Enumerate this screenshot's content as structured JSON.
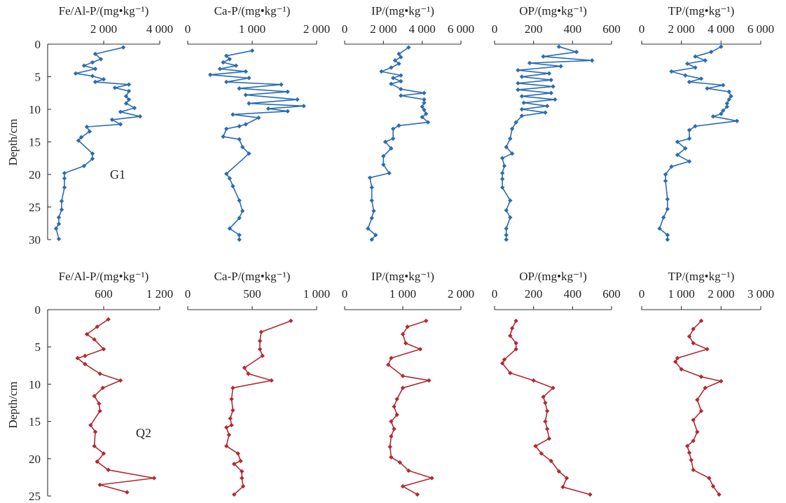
{
  "figure": {
    "ylabel": "Depth/cm",
    "site_labels": [
      "G1",
      "Q2"
    ]
  },
  "chart_data": [
    {
      "type": "line",
      "site": "G1",
      "series_color": "#2b6cb0",
      "title": "Fe/Al-P/(mg•kg⁻¹)",
      "ylabel": "Depth/cm",
      "xlim": [
        0,
        4000
      ],
      "ylim": [
        0,
        30
      ],
      "x_ticks": [
        "2 000",
        "4 000"
      ],
      "x_tick_values": [
        2000,
        4000
      ],
      "y_ticks": [
        "0",
        "5",
        "10",
        "15",
        "20",
        "25",
        "30"
      ],
      "x": [
        2700,
        1700,
        1900,
        1600,
        1300,
        1700,
        1000,
        1600,
        2000,
        1700,
        2900,
        2400,
        2900,
        2800,
        2900,
        2800,
        3100,
        2600,
        3300,
        2300,
        2600,
        1400,
        1500,
        1200,
        1100,
        1600,
        1600,
        1300,
        600,
        600,
        600,
        500,
        500,
        400,
        400,
        300,
        400
      ],
      "y": [
        0.5,
        1.5,
        2.3,
        2.8,
        3.3,
        3.8,
        4.5,
        4.9,
        5.4,
        5.8,
        6.2,
        6.7,
        7.2,
        8.0,
        8.5,
        9.1,
        9.8,
        10.4,
        11.1,
        11.6,
        12.3,
        12.7,
        13.4,
        14.3,
        14.8,
        16.8,
        17.6,
        18.7,
        19.8,
        20.6,
        22.0,
        24.1,
        25.4,
        26.6,
        27.6,
        28.3,
        29.9
      ]
    },
    {
      "type": "line",
      "site": "G1",
      "series_color": "#2b6cb0",
      "title": "Ca-P/(mg•kg⁻¹)",
      "xlim": [
        0,
        2000
      ],
      "ylim": [
        0,
        30
      ],
      "x_ticks": [
        "0",
        "1 000",
        "2 000"
      ],
      "x_tick_values": [
        0,
        1000,
        2000
      ],
      "x": [
        1000,
        600,
        650,
        550,
        750,
        500,
        900,
        350,
        950,
        600,
        1450,
        800,
        1550,
        900,
        1700,
        950,
        1800,
        1250,
        1550,
        700,
        1100,
        900,
        800,
        600,
        550,
        800,
        850,
        950,
        600,
        650,
        700,
        800,
        850,
        800,
        650,
        800,
        800
      ],
      "y": [
        1.0,
        1.8,
        2.3,
        2.8,
        3.3,
        3.8,
        4.2,
        4.7,
        5.2,
        5.8,
        6.2,
        6.8,
        7.3,
        7.8,
        8.5,
        9.1,
        9.5,
        9.9,
        10.3,
        10.8,
        11.3,
        12.3,
        12.6,
        13.0,
        14.2,
        14.6,
        15.8,
        16.8,
        19.9,
        20.6,
        21.8,
        24.0,
        25.6,
        26.7,
        28.3,
        29.3,
        30.0
      ]
    },
    {
      "type": "line",
      "site": "G1",
      "series_color": "#2b6cb0",
      "title": "IP/(mg•kg⁻¹)",
      "xlim": [
        0,
        6000
      ],
      "ylim": [
        0,
        30
      ],
      "x_ticks": [
        "0",
        "2 000",
        "4 000",
        "6 000"
      ],
      "x_tick_values": [
        0,
        2000,
        4000,
        6000
      ],
      "x": [
        3300,
        2800,
        2900,
        2600,
        2800,
        2400,
        1900,
        2900,
        2500,
        2900,
        2400,
        2900,
        4100,
        2900,
        4100,
        4100,
        4000,
        4100,
        4200,
        4000,
        4300,
        2800,
        2500,
        2500,
        2100,
        2400,
        2000,
        2000,
        2300,
        1300,
        1400,
        1400,
        1500,
        1400,
        1200,
        1600,
        1400
      ],
      "y": [
        0.5,
        1.5,
        2.0,
        2.5,
        3.0,
        3.6,
        4.2,
        4.8,
        5.2,
        5.7,
        6.1,
        6.9,
        7.5,
        7.9,
        8.5,
        9.0,
        9.6,
        10.1,
        10.7,
        11.2,
        12.0,
        12.5,
        13.0,
        14.5,
        15.0,
        16.0,
        17.2,
        18.5,
        19.8,
        20.5,
        22.0,
        24.0,
        25.6,
        26.7,
        28.3,
        29.3,
        30.0
      ]
    },
    {
      "type": "line",
      "site": "G1",
      "series_color": "#2b6cb0",
      "title": "OP/(mg•kg⁻¹)",
      "xlim": [
        0,
        600
      ],
      "ylim": [
        0,
        30
      ],
      "x_ticks": [
        "0",
        "200",
        "400",
        "600"
      ],
      "x_tick_values": [
        0,
        200,
        400,
        600
      ],
      "x": [
        330,
        420,
        250,
        500,
        180,
        340,
        120,
        280,
        140,
        290,
        120,
        300,
        120,
        290,
        140,
        310,
        150,
        270,
        140,
        260,
        140,
        110,
        90,
        80,
        60,
        90,
        40,
        50,
        40,
        40,
        40,
        80,
        60,
        80,
        60,
        60,
        60
      ],
      "y": [
        0.4,
        1.2,
        1.9,
        2.5,
        2.9,
        3.4,
        4.0,
        4.5,
        5.0,
        5.5,
        6.0,
        6.5,
        7.0,
        7.5,
        8.0,
        8.5,
        9.0,
        9.5,
        10.0,
        10.5,
        11.0,
        12.0,
        13.0,
        14.5,
        15.8,
        16.8,
        17.5,
        18.7,
        19.8,
        20.7,
        22.0,
        24.0,
        25.5,
        26.6,
        28.3,
        29.3,
        30.0
      ]
    },
    {
      "type": "line",
      "site": "G1",
      "series_color": "#2b6cb0",
      "title": "TP/(mg•kg⁻¹)",
      "xlim": [
        0,
        6000
      ],
      "ylim": [
        0,
        30
      ],
      "x_ticks": [
        "0",
        "2 000",
        "4 000",
        "6 000"
      ],
      "x_tick_values": [
        0,
        2000,
        4000,
        6000
      ],
      "x": [
        4000,
        3500,
        2700,
        3200,
        2300,
        2700,
        1500,
        2200,
        3000,
        2400,
        4100,
        3300,
        4400,
        4500,
        4400,
        4300,
        4300,
        4100,
        4000,
        3600,
        4800,
        2700,
        2400,
        2400,
        1800,
        2200,
        1800,
        2400,
        1500,
        1200,
        1200,
        1300,
        1300,
        1100,
        900,
        1300,
        1300
      ],
      "y": [
        0.4,
        1.2,
        1.9,
        2.5,
        3.0,
        3.6,
        4.2,
        4.8,
        5.3,
        5.8,
        6.3,
        6.8,
        7.3,
        8.0,
        8.5,
        9.1,
        9.6,
        10.2,
        10.7,
        11.1,
        11.8,
        12.6,
        13.2,
        14.5,
        15.0,
        16.0,
        17.0,
        18.0,
        18.8,
        20.0,
        21.0,
        23.8,
        25.3,
        26.6,
        28.3,
        29.3,
        30.0
      ]
    },
    {
      "type": "line",
      "site": "Q2",
      "series_color": "#b22a32",
      "title": "Fe/Al-P/(mg•kg⁻¹)",
      "ylabel": "Depth/cm",
      "xlim": [
        0,
        1200
      ],
      "ylim": [
        0,
        25
      ],
      "x_ticks": [
        "600",
        "1 200"
      ],
      "x_tick_values": [
        600,
        1200
      ],
      "y_ticks": [
        "0",
        "5",
        "10",
        "15",
        "20",
        "25"
      ],
      "x": [
        650,
        530,
        420,
        500,
        600,
        400,
        320,
        400,
        560,
        780,
        590,
        500,
        550,
        560,
        460,
        510,
        500,
        600,
        530,
        650,
        1140,
        560,
        850
      ],
      "y": [
        1.3,
        2.3,
        3.3,
        4.0,
        5.3,
        6.2,
        6.5,
        7.3,
        8.6,
        9.5,
        10.5,
        11.6,
        12.6,
        13.6,
        15.5,
        16.4,
        18.3,
        19.3,
        20.4,
        21.5,
        22.6,
        23.5,
        24.5
      ]
    },
    {
      "type": "line",
      "site": "Q2",
      "series_color": "#b22a32",
      "title": "Ca-P/(mg•kg⁻¹)",
      "xlim": [
        0,
        1000
      ],
      "ylim": [
        0,
        25
      ],
      "x_ticks": [
        "0",
        "500",
        "1 000"
      ],
      "x_tick_values": [
        0,
        500,
        1000
      ],
      "x": [
        800,
        570,
        560,
        560,
        580,
        440,
        470,
        650,
        350,
        340,
        350,
        330,
        340,
        300,
        320,
        300,
        390,
        410,
        360,
        420,
        420,
        430,
        360
      ],
      "y": [
        1.5,
        3.0,
        4.2,
        5.3,
        6.2,
        7.8,
        8.6,
        9.5,
        10.5,
        12.0,
        13.5,
        14.6,
        15.5,
        15.8,
        16.8,
        18.3,
        19.3,
        20.3,
        20.7,
        21.7,
        22.6,
        23.7,
        24.8
      ]
    },
    {
      "type": "line",
      "site": "Q2",
      "series_color": "#b22a32",
      "title": "IP/(mg•kg⁻¹)",
      "xlim": [
        0,
        2000
      ],
      "ylim": [
        0,
        25
      ],
      "x_ticks": [
        "0",
        "1 000",
        "2 000"
      ],
      "x_tick_values": [
        0,
        1000,
        2000
      ],
      "x": [
        1400,
        1080,
        1000,
        1050,
        1300,
        800,
        750,
        1000,
        1450,
        1000,
        900,
        850,
        900,
        800,
        850,
        800,
        780,
        800,
        950,
        1100,
        1500,
        1000,
        1250
      ],
      "y": [
        1.5,
        2.3,
        3.3,
        4.5,
        5.3,
        6.5,
        7.4,
        8.9,
        9.5,
        10.5,
        12.0,
        13.0,
        14.1,
        15.0,
        16.0,
        17.0,
        18.4,
        19.8,
        20.5,
        21.6,
        22.6,
        23.7,
        24.8
      ]
    },
    {
      "type": "line",
      "site": "Q2",
      "series_color": "#b22a32",
      "title": "OP/(mg•kg⁻¹)",
      "xlim": [
        0,
        600
      ],
      "ylim": [
        0,
        25
      ],
      "x_ticks": [
        "0",
        "200",
        "400",
        "600"
      ],
      "x_tick_values": [
        0,
        200,
        400,
        600
      ],
      "x": [
        110,
        90,
        80,
        110,
        110,
        50,
        40,
        80,
        200,
        300,
        250,
        260,
        270,
        260,
        270,
        280,
        210,
        240,
        290,
        330,
        370,
        350,
        490
      ],
      "y": [
        1.5,
        2.5,
        3.5,
        4.5,
        5.3,
        6.7,
        7.2,
        8.5,
        9.5,
        10.5,
        11.7,
        12.5,
        13.6,
        15.0,
        16.0,
        17.3,
        18.3,
        19.3,
        20.3,
        21.7,
        22.6,
        23.8,
        24.8
      ]
    },
    {
      "type": "line",
      "site": "Q2",
      "series_color": "#b22a32",
      "title": "TP/(mg•kg⁻¹)",
      "xlim": [
        0,
        3000
      ],
      "ylim": [
        0,
        25
      ],
      "x_ticks": [
        "0",
        "1 000",
        "2 000",
        "3 000"
      ],
      "x_tick_values": [
        0,
        1000,
        2000,
        3000
      ],
      "x": [
        1500,
        1300,
        1200,
        1300,
        1650,
        900,
        850,
        1000,
        1500,
        2000,
        1600,
        1400,
        1500,
        1300,
        1400,
        1300,
        1150,
        1200,
        1250,
        1300,
        1700,
        1800,
        1950
      ],
      "y": [
        1.5,
        2.6,
        3.6,
        4.5,
        5.3,
        6.5,
        7.0,
        8.0,
        9.0,
        9.6,
        10.5,
        12.1,
        13.6,
        14.8,
        16.4,
        17.6,
        18.3,
        19.2,
        20.2,
        21.5,
        22.6,
        23.7,
        24.8
      ]
    }
  ]
}
